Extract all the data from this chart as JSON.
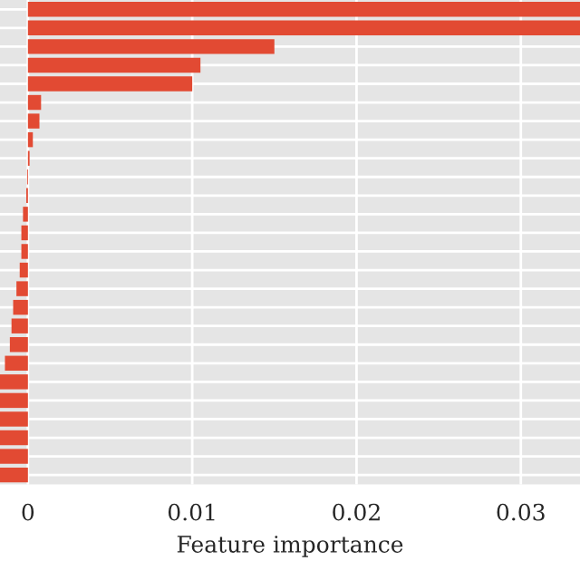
{
  "chart_data": {
    "type": "bar",
    "orientation": "horizontal",
    "xlabel": "Feature importance",
    "categories": [
      null,
      null,
      null,
      null,
      null,
      null,
      null,
      null,
      null,
      null,
      null,
      null,
      null,
      null,
      null,
      null,
      null,
      null,
      null,
      null,
      null,
      null,
      null,
      null,
      null,
      null
    ],
    "values": [
      0.0336,
      0.0336,
      0.015,
      0.0105,
      0.01,
      0.0008,
      0.0007,
      0.0003,
      0.0001,
      -5e-05,
      -0.0001,
      -0.0003,
      -0.0004,
      -0.0004,
      -0.0005,
      -0.0007,
      -0.0009,
      -0.001,
      -0.0011,
      -0.0014,
      -0.0017,
      -0.0017,
      -0.0017,
      -0.0017,
      -0.0017,
      -0.0017
    ],
    "color": "#e24a33",
    "xlim": [
      -0.0017,
      0.0336
    ],
    "xticks": [
      0,
      0.01,
      0.02,
      0.03
    ],
    "tick_labels": "x",
    "grid": true
  }
}
